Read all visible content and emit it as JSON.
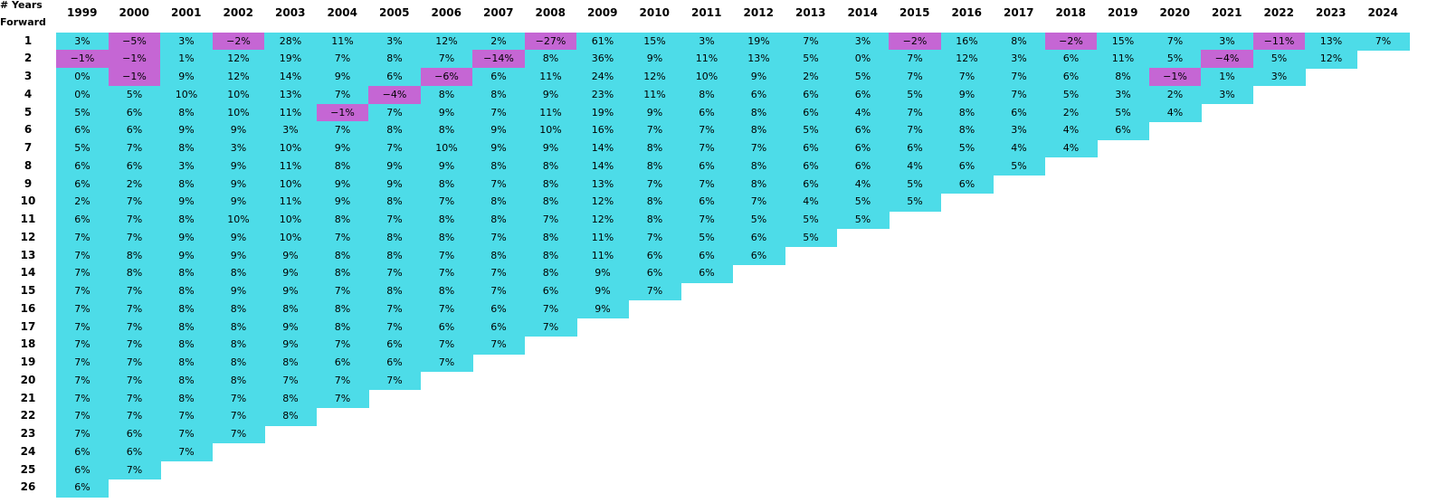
{
  "header": {
    "title_line1": "# Years",
    "title_line2": "Forward"
  },
  "colors": {
    "positive": "#4ddce8",
    "negative": "#c566d4"
  },
  "chart_data": {
    "type": "table",
    "columns": [
      "1999",
      "2000",
      "2001",
      "2002",
      "2003",
      "2004",
      "2005",
      "2006",
      "2007",
      "2008",
      "2009",
      "2010",
      "2011",
      "2012",
      "2013",
      "2014",
      "2015",
      "2016",
      "2017",
      "2018",
      "2019",
      "2020",
      "2021",
      "2022",
      "2023",
      "2024"
    ],
    "rows": [
      "1",
      "2",
      "3",
      "4",
      "5",
      "6",
      "7",
      "8",
      "9",
      "10",
      "11",
      "12",
      "13",
      "14",
      "15",
      "16",
      "17",
      "18",
      "19",
      "20",
      "21",
      "22",
      "23",
      "24",
      "25",
      "26"
    ],
    "values": [
      [
        "3%",
        "-1%",
        "0%",
        "0%",
        "5%",
        "6%",
        "5%",
        "6%",
        "6%",
        "2%",
        "6%",
        "7%",
        "7%",
        "7%",
        "7%",
        "7%",
        "7%",
        "7%",
        "7%",
        "7%",
        "7%",
        "7%",
        "7%",
        "6%",
        "6%",
        "6%"
      ],
      [
        "-5%",
        "-1%",
        "-1%",
        "5%",
        "6%",
        "6%",
        "7%",
        "6%",
        "2%",
        "7%",
        "7%",
        "7%",
        "8%",
        "8%",
        "7%",
        "7%",
        "7%",
        "7%",
        "7%",
        "7%",
        "7%",
        "7%",
        "6%",
        "6%",
        "7%"
      ],
      [
        "3%",
        "1%",
        "9%",
        "10%",
        "8%",
        "9%",
        "8%",
        "3%",
        "8%",
        "9%",
        "8%",
        "9%",
        "9%",
        "8%",
        "8%",
        "8%",
        "8%",
        "8%",
        "8%",
        "8%",
        "8%",
        "7%",
        "7%",
        "7%"
      ],
      [
        "-2%",
        "12%",
        "12%",
        "10%",
        "10%",
        "9%",
        "3%",
        "9%",
        "9%",
        "9%",
        "10%",
        "9%",
        "9%",
        "8%",
        "9%",
        "8%",
        "8%",
        "8%",
        "8%",
        "8%",
        "7%",
        "7%",
        "7%"
      ],
      [
        "28%",
        "19%",
        "14%",
        "13%",
        "11%",
        "3%",
        "10%",
        "11%",
        "10%",
        "11%",
        "10%",
        "10%",
        "9%",
        "9%",
        "9%",
        "8%",
        "9%",
        "9%",
        "8%",
        "7%",
        "8%",
        "8%"
      ],
      [
        "11%",
        "7%",
        "9%",
        "7%",
        "-1%",
        "7%",
        "9%",
        "8%",
        "9%",
        "9%",
        "8%",
        "7%",
        "8%",
        "8%",
        "7%",
        "8%",
        "8%",
        "7%",
        "6%",
        "7%",
        "7%"
      ],
      [
        "3%",
        "8%",
        "6%",
        "-4%",
        "7%",
        "8%",
        "7%",
        "9%",
        "9%",
        "8%",
        "7%",
        "8%",
        "8%",
        "7%",
        "8%",
        "7%",
        "7%",
        "6%",
        "6%",
        "7%"
      ],
      [
        "12%",
        "7%",
        "-6%",
        "8%",
        "9%",
        "8%",
        "10%",
        "9%",
        "8%",
        "7%",
        "8%",
        "8%",
        "7%",
        "7%",
        "8%",
        "7%",
        "6%",
        "7%",
        "7%"
      ],
      [
        "2%",
        "-14%",
        "6%",
        "8%",
        "7%",
        "9%",
        "9%",
        "8%",
        "7%",
        "8%",
        "8%",
        "7%",
        "8%",
        "7%",
        "7%",
        "6%",
        "6%",
        "7%"
      ],
      [
        "-27%",
        "8%",
        "11%",
        "9%",
        "11%",
        "10%",
        "9%",
        "8%",
        "8%",
        "8%",
        "7%",
        "8%",
        "8%",
        "8%",
        "6%",
        "7%",
        "7%"
      ],
      [
        "61%",
        "36%",
        "24%",
        "23%",
        "19%",
        "16%",
        "14%",
        "14%",
        "13%",
        "12%",
        "12%",
        "11%",
        "11%",
        "9%",
        "9%",
        "9%"
      ],
      [
        "15%",
        "9%",
        "12%",
        "11%",
        "9%",
        "7%",
        "8%",
        "8%",
        "7%",
        "8%",
        "8%",
        "7%",
        "6%",
        "6%",
        "7%"
      ],
      [
        "3%",
        "11%",
        "10%",
        "8%",
        "6%",
        "7%",
        "7%",
        "6%",
        "7%",
        "6%",
        "7%",
        "5%",
        "6%",
        "6%"
      ],
      [
        "19%",
        "13%",
        "9%",
        "6%",
        "8%",
        "8%",
        "7%",
        "8%",
        "8%",
        "7%",
        "5%",
        "6%",
        "6%"
      ],
      [
        "7%",
        "5%",
        "2%",
        "6%",
        "6%",
        "5%",
        "6%",
        "6%",
        "6%",
        "4%",
        "5%",
        "5%"
      ],
      [
        "3%",
        "0%",
        "5%",
        "6%",
        "4%",
        "6%",
        "6%",
        "6%",
        "4%",
        "5%",
        "5%"
      ],
      [
        "-2%",
        "7%",
        "7%",
        "5%",
        "7%",
        "7%",
        "6%",
        "4%",
        "5%",
        "5%"
      ],
      [
        "16%",
        "12%",
        "7%",
        "9%",
        "8%",
        "8%",
        "5%",
        "6%",
        "6%"
      ],
      [
        "8%",
        "3%",
        "7%",
        "7%",
        "6%",
        "3%",
        "4%",
        "5%"
      ],
      [
        "-2%",
        "6%",
        "6%",
        "5%",
        "2%",
        "4%",
        "4%"
      ],
      [
        "15%",
        "11%",
        "8%",
        "3%",
        "5%",
        "6%"
      ],
      [
        "7%",
        "5%",
        "-1%",
        "2%",
        "4%"
      ],
      [
        "3%",
        "-4%",
        "1%",
        "3%"
      ],
      [
        "-11%",
        "5%",
        "3%"
      ],
      [
        "13%",
        "12%"
      ],
      [
        "7%"
      ]
    ]
  }
}
